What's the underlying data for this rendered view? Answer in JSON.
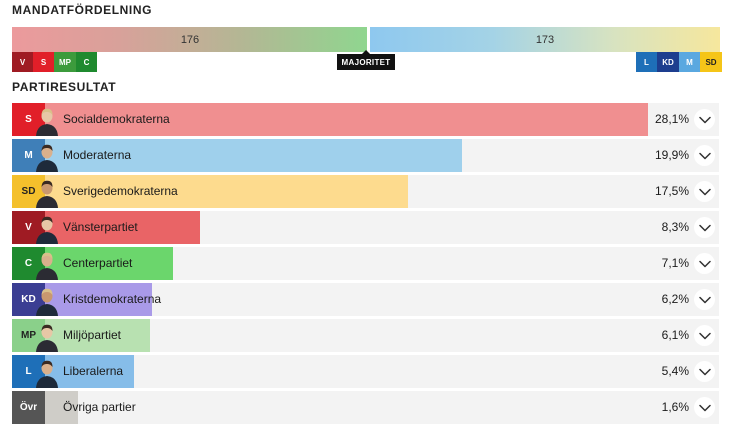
{
  "seat_distribution": {
    "title": "MANDATFÖRDELNING",
    "left_block": {
      "seats": "176",
      "parties": [
        {
          "abbr": "V",
          "color": "#9f1b23"
        },
        {
          "abbr": "S",
          "color": "#e11f29"
        },
        {
          "abbr": "MP",
          "color": "#3c9b3c"
        },
        {
          "abbr": "C",
          "color": "#1f8a2f"
        }
      ]
    },
    "right_block": {
      "seats": "173",
      "parties": [
        {
          "abbr": "L",
          "color": "#1e6fb8"
        },
        {
          "abbr": "KD",
          "color": "#1d3e8f"
        },
        {
          "abbr": "M",
          "color": "#5aa8e0"
        },
        {
          "abbr": "SD",
          "color": "#f5c518"
        }
      ]
    },
    "majority_label": "MAJORITET"
  },
  "party_results": {
    "title": "PARTIRESULTAT",
    "parties": [
      {
        "abbr": "S",
        "name": "Socialdemokraterna",
        "percent": "28,1%",
        "share": 0.281,
        "abbr_color": "#e11f29",
        "bar_color": "#f08f90"
      },
      {
        "abbr": "M",
        "name": "Moderaterna",
        "percent": "19,9%",
        "share": 0.199,
        "abbr_color": "#3f7fb8",
        "bar_color": "#9fd0ec"
      },
      {
        "abbr": "SD",
        "name": "Sverigedemokraterna",
        "percent": "17,5%",
        "share": 0.175,
        "abbr_color": "#f4c02c",
        "bar_color": "#fddb8e"
      },
      {
        "abbr": "V",
        "name": "Vänsterpartiet",
        "percent": "8,3%",
        "share": 0.083,
        "abbr_color": "#9f1b23",
        "bar_color": "#e96466"
      },
      {
        "abbr": "C",
        "name": "Centerpartiet",
        "percent": "7,1%",
        "share": 0.071,
        "abbr_color": "#1f8a2f",
        "bar_color": "#6bd66c"
      },
      {
        "abbr": "KD",
        "name": "Kristdemokraterna",
        "percent": "6,2%",
        "share": 0.062,
        "abbr_color": "#3b3e93",
        "bar_color": "#a99ae8"
      },
      {
        "abbr": "MP",
        "name": "Miljöpartiet",
        "percent": "6,1%",
        "share": 0.061,
        "abbr_color": "#8ad08a",
        "bar_color": "#b8e1b1"
      },
      {
        "abbr": "L",
        "name": "Liberalerna",
        "percent": "5,4%",
        "share": 0.054,
        "abbr_color": "#1e6fb8",
        "bar_color": "#86bde9"
      },
      {
        "abbr": "Övr",
        "name": "Övriga partier",
        "percent": "1,6%",
        "share": 0.016,
        "abbr_color": "#555555",
        "bar_color": "#cfcdc8"
      }
    ]
  }
}
